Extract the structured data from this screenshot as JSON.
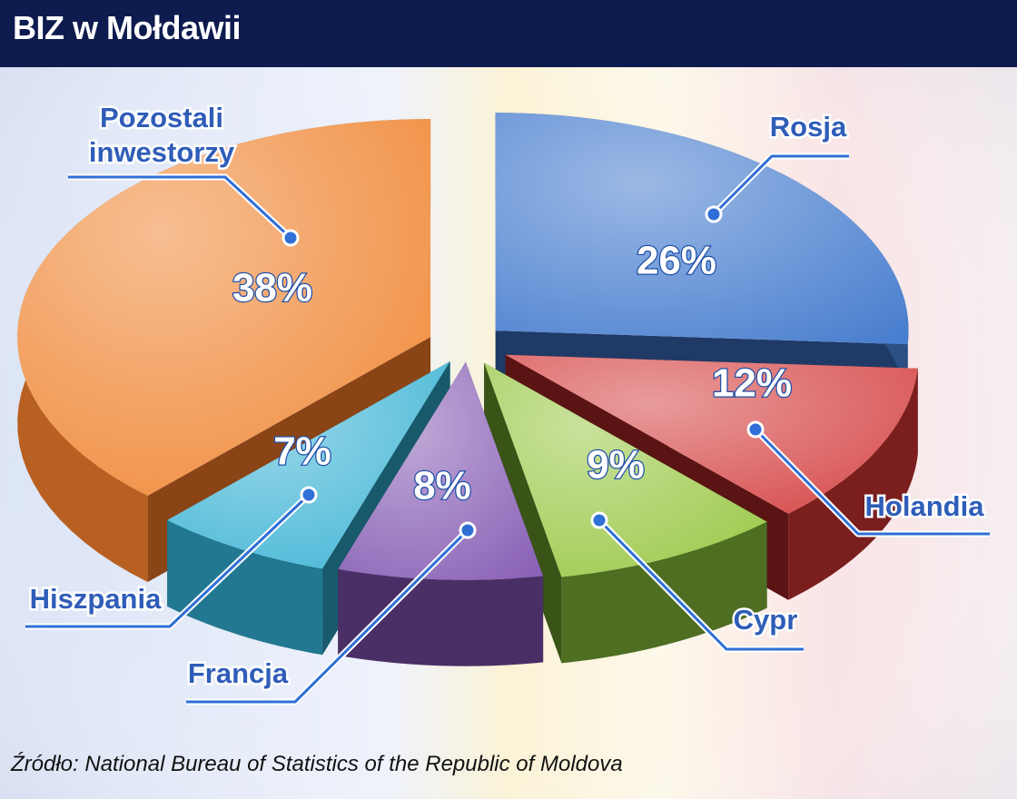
{
  "header": {
    "title": "BIZ w Mołdawii"
  },
  "chart_data": {
    "type": "pie",
    "title": "BIZ w Mołdawii",
    "unit": "%",
    "slices": [
      {
        "name": "Rosja",
        "value": 26,
        "label": "26%",
        "color": "#4a7fcf",
        "side": "#2c4f84",
        "dark": "#1f3a66"
      },
      {
        "name": "Holandia",
        "value": 12,
        "label": "12%",
        "color": "#d64a4a",
        "side": "#7a1e1e",
        "dark": "#5a1414"
      },
      {
        "name": "Cypr",
        "value": 9,
        "label": "9%",
        "color": "#9cc94a",
        "side": "#4e6e22",
        "dark": "#3a5418"
      },
      {
        "name": "Francja",
        "value": 8,
        "label": "8%",
        "color": "#8a62b6",
        "side": "#4a2f66",
        "dark": "#36224d"
      },
      {
        "name": "Hiszpania",
        "value": 7,
        "label": "7%",
        "color": "#44b6d6",
        "side": "#227890",
        "dark": "#185a6c"
      },
      {
        "name": "Pozostali inwestorzy",
        "value": 38,
        "label": "38%",
        "color": "#f08a3a",
        "side": "#b86022",
        "dark": "#8a4416"
      }
    ],
    "callout_labels": [
      "Rosja",
      "Holandia",
      "Cypr",
      "Francja",
      "Hiszpania",
      "Pozostali\ninwestorzy"
    ],
    "style": "3d-exploded"
  },
  "source": "Źródło: National Bureau of Statistics of the Republic of Moldova",
  "colors": {
    "header_bg": "#0d1b4e",
    "label_text": "#2f5db8",
    "leader_line": "#2f6fd6"
  }
}
